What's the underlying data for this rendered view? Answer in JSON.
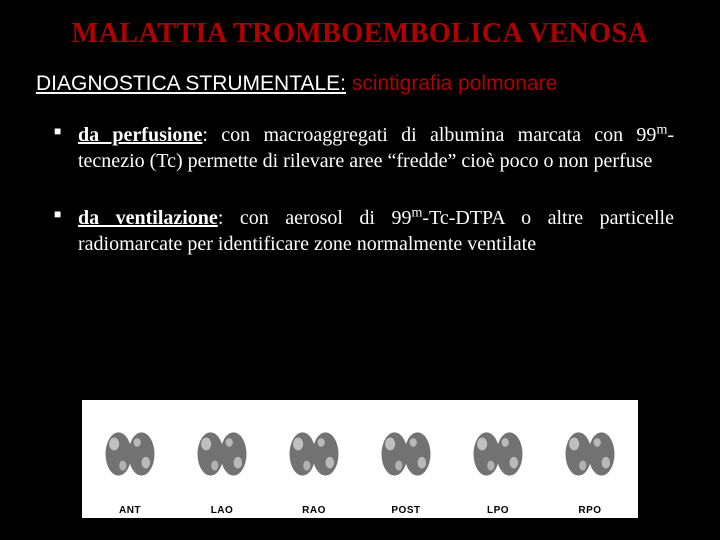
{
  "colors": {
    "background": "#000000",
    "title": "#b00000",
    "subtitle_u": "#ffffff",
    "subtitle_rest": "#b00000",
    "bullet_text": "#ffffff",
    "bullet_marker": "#ffffff",
    "figure_bg": "#ffffff",
    "lung_fill": "#5a5a5a",
    "panel_label": "#000000"
  },
  "title": "MALATTIA TROMBOEMBOLICA VENOSA",
  "subtitle": {
    "underlined": "DIAGNOSTICA STRUMENTALE:",
    "rest": " scintigrafia polmonare"
  },
  "bullets": [
    {
      "term": "da perfusione",
      "rest_html": ": con macroaggregati di albumina marcata con 99<sup>m</sup>-tecnezio (Tc) permette di rilevare aree “fredde” cioè poco o non perfuse"
    },
    {
      "term": "da ventilazione",
      "rest_html": ": con aerosol di 99<sup>m</sup>-Tc-DTPA o altre particelle radiomarcate per identificare zone normalmente ventilate"
    }
  ],
  "figure": {
    "panels": [
      "ANT",
      "LAO",
      "RAO",
      "POST",
      "LPO",
      "RPO"
    ]
  }
}
